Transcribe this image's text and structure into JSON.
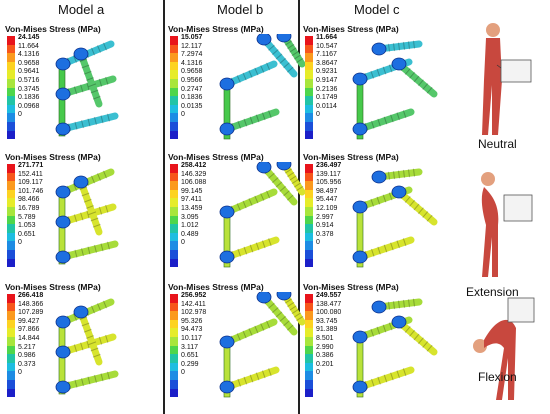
{
  "headers": [
    "Model a",
    "Model b",
    "Model c"
  ],
  "legend_title": "Von-Mises Stress (MPa)",
  "legend_colors": [
    "#e8141b",
    "#f7561b",
    "#fb9a1e",
    "#fdd321",
    "#e6ec2a",
    "#a8e63c",
    "#4ed64b",
    "#21c4a6",
    "#1ebde1",
    "#1d8ce4",
    "#1b4fd9",
    "#1b1fc8"
  ],
  "panels": [
    {
      "model": "a",
      "row": 0,
      "labels": [
        "24.145",
        "11.664",
        "4.1316",
        "0.9658",
        "0.9641",
        "0.5716",
        "0.3745",
        "0.1836",
        "0.0968",
        "0"
      ]
    },
    {
      "model": "b",
      "row": 0,
      "labels": [
        "15.057",
        "12.117",
        "7.2974",
        "4.1316",
        "0.9658",
        "0.9566",
        "0.2747",
        "0.1836",
        "0.0135",
        "0"
      ]
    },
    {
      "model": "c",
      "row": 0,
      "labels": [
        "11.664",
        "10.547",
        "7.1167",
        "3.8647",
        "0.9231",
        "0.9147",
        "0.2136",
        "0.1749",
        "0.0114",
        "0"
      ]
    },
    {
      "model": "a",
      "row": 1,
      "labels": [
        "271.771",
        "152.411",
        "109.117",
        "101.746",
        "98.466",
        "16.789",
        "5.789",
        "1.053",
        "0.651",
        "0"
      ]
    },
    {
      "model": "b",
      "row": 1,
      "labels": [
        "258.412",
        "146.329",
        "106.088",
        "99.145",
        "97.411",
        "13.459",
        "3.095",
        "1.012",
        "0.489",
        "0"
      ]
    },
    {
      "model": "c",
      "row": 1,
      "labels": [
        "236.497",
        "139.117",
        "105.956",
        "98.497",
        "95.447",
        "12.109",
        "2.997",
        "0.914",
        "0.378",
        "0"
      ]
    },
    {
      "model": "a",
      "row": 2,
      "labels": [
        "266.418",
        "148.366",
        "107.289",
        "99.427",
        "97.866",
        "14.844",
        "5.217",
        "0.986",
        "0.373",
        "0"
      ]
    },
    {
      "model": "b",
      "row": 2,
      "labels": [
        "256.952",
        "142.411",
        "102.978",
        "95.326",
        "94.473",
        "10.117",
        "3.117",
        "0.651",
        "0.299",
        "0"
      ]
    },
    {
      "model": "c",
      "row": 2,
      "labels": [
        "249.557",
        "138.477",
        "100.080",
        "93.745",
        "91.389",
        "8.501",
        "2.990",
        "0.386",
        "0.201",
        "0"
      ]
    }
  ],
  "poses": [
    "Neutral",
    "Extension",
    "Flexion"
  ]
}
